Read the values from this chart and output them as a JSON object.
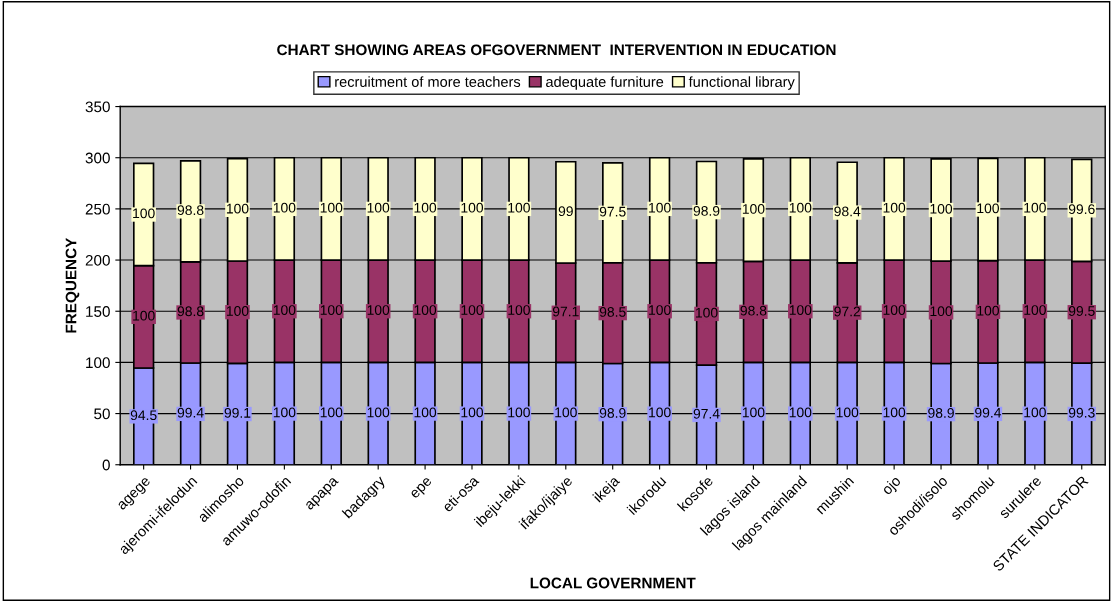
{
  "chart_data": {
    "type": "bar",
    "title": "CHART SHOWING AREAS OFGOVERNMENT  INTERVENTION IN EDUCATION",
    "xlabel": "LOCAL GOVERNMENT",
    "ylabel": "FREQUENCY",
    "categories": [
      "agege",
      "ajeromi-ifelodun",
      "alimosho",
      "amuwo-odofin",
      "apapa",
      "badagry",
      "epe",
      "eti-osa",
      "ibeju-lekki",
      "ifako/ijaiye",
      "ikeja",
      "ikorodu",
      "kosofe",
      "lagos island",
      "lagos mainland",
      "mushin",
      "ojo",
      "oshodi/isolo",
      "shomolu",
      "surulere",
      "STATE INDICATOR"
    ],
    "series": [
      {
        "name": "recruitment of more teachers",
        "color": "#9999ff",
        "values": [
          94.5,
          99.4,
          99.1,
          100,
          100,
          100,
          100,
          100,
          100,
          100,
          98.9,
          100,
          97.4,
          100,
          100,
          100,
          100,
          98.9,
          99.4,
          100,
          99.3
        ]
      },
      {
        "name": "adequate furniture",
        "color": "#993366",
        "values": [
          100,
          98.8,
          100,
          100,
          100,
          100,
          100,
          100,
          100,
          97.1,
          98.5,
          100,
          100,
          98.8,
          100,
          97.2,
          100,
          100,
          100,
          100,
          99.5
        ]
      },
      {
        "name": "functional library",
        "color": "#ffffcc",
        "values": [
          100,
          98.8,
          100,
          100,
          100,
          100,
          100,
          100,
          100,
          99,
          97.5,
          100,
          98.9,
          100,
          100,
          98.4,
          100,
          100,
          100,
          100,
          99.6
        ]
      }
    ],
    "stacked": true,
    "data_labels": true,
    "ylim": [
      0,
      350
    ],
    "yticks": [
      0,
      50,
      100,
      150,
      200,
      250,
      300,
      350
    ],
    "grid": "y",
    "legend": "top"
  }
}
